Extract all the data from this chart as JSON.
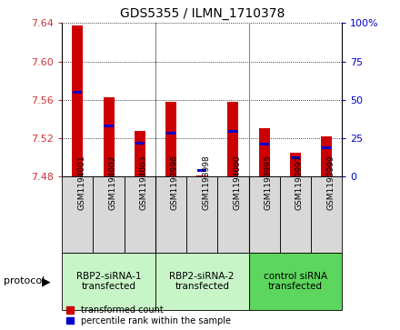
{
  "title": "GDS5355 / ILMN_1710378",
  "samples": [
    "GSM1194001",
    "GSM1194002",
    "GSM1194003",
    "GSM1193996",
    "GSM1193998",
    "GSM1194000",
    "GSM1193995",
    "GSM1193997",
    "GSM1193999"
  ],
  "red_values": [
    7.638,
    7.563,
    7.528,
    7.558,
    7.481,
    7.558,
    7.53,
    7.505,
    7.522
  ],
  "blue_values": [
    7.568,
    7.533,
    7.515,
    7.525,
    7.486,
    7.527,
    7.514,
    7.5,
    7.51
  ],
  "y_min": 7.48,
  "y_max": 7.64,
  "y_ticks": [
    7.48,
    7.52,
    7.56,
    7.6,
    7.64
  ],
  "y2_ticks": [
    0,
    25,
    50,
    75,
    100
  ],
  "y2_tick_labels": [
    "0",
    "25",
    "50",
    "75",
    "100%"
  ],
  "groups": [
    {
      "label": "RBP2-siRNA-1\ntransfected",
      "start": 0,
      "end": 3,
      "color": "#c8f5c8"
    },
    {
      "label": "RBP2-siRNA-2\ntransfected",
      "start": 3,
      "end": 6,
      "color": "#c8f5c8"
    },
    {
      "label": "control siRNA\ntransfected",
      "start": 6,
      "end": 9,
      "color": "#5cd65c"
    }
  ],
  "bar_width": 0.35,
  "bar_color": "#cc0000",
  "blue_color": "#0000cc",
  "base_value": 7.48,
  "protocol_label": "protocol",
  "legend_red": "transformed count",
  "legend_blue": "percentile rank within the sample",
  "tick_color_left": "#cc3333",
  "tick_color_right": "#0000cc",
  "bg_color": "#d8d8d8"
}
